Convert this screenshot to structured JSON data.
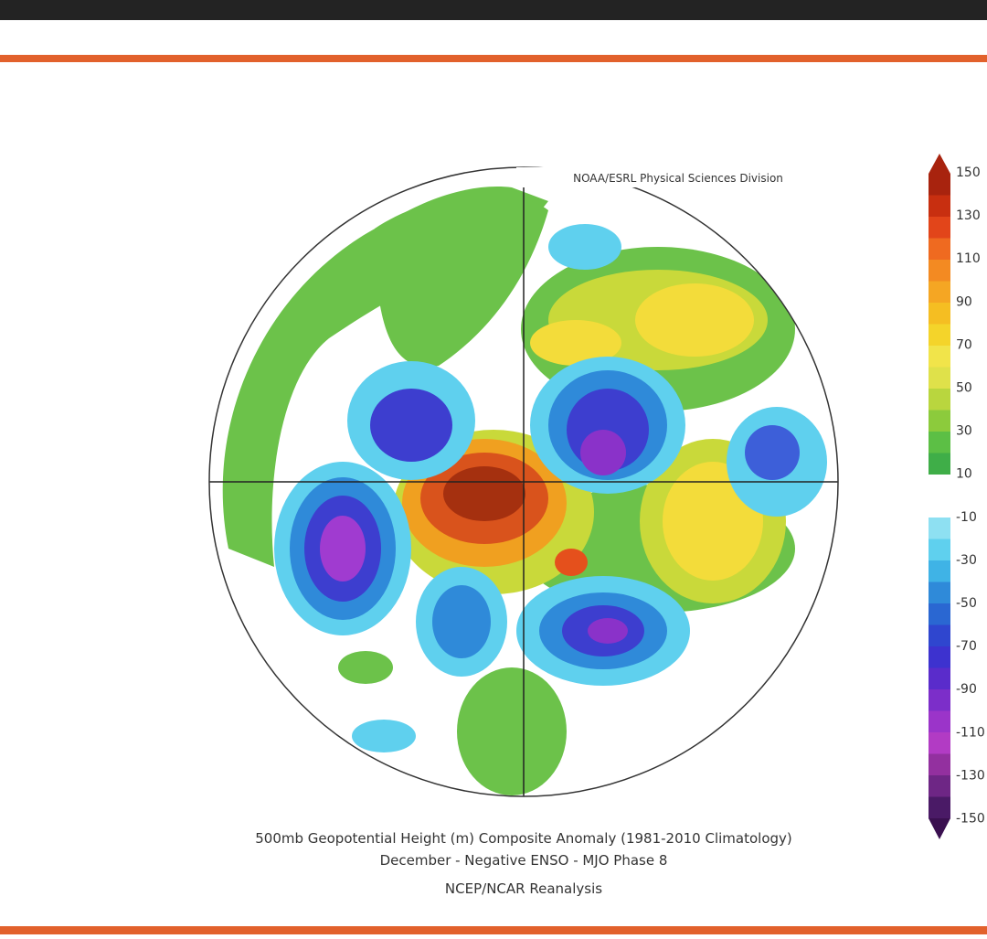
{
  "map": {
    "source": "NOAA/ESRL Physical Sciences Division",
    "caption": [
      "500mb Geopotential Height (m) Composite Anomaly (1981-2010 Climatology)",
      "December - Negative ENSO - MJO Phase 8",
      "NCEP/NCAR Reanalysis"
    ],
    "colorbar": {
      "labels": [
        150,
        130,
        110,
        90,
        70,
        50,
        30,
        10,
        -10,
        -30,
        -50,
        -70,
        -90,
        -110,
        -130,
        -150
      ]
    }
  }
}
